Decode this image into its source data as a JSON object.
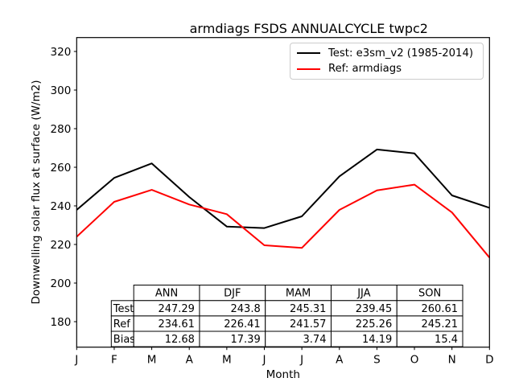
{
  "title": "armdiags FSDS ANNUALCYCLE twpc2",
  "ylabel": "Downwelling solar flux at surface (W/m2)",
  "xlabel": "Month",
  "legend": [
    {
      "label": "Test: e3sm_v2 (1985-2014)",
      "color": "#000000"
    },
    {
      "label": "Ref: armdiags",
      "color": "#ff0000"
    }
  ],
  "colors": {
    "test": "#000000",
    "ref": "#ff0000",
    "axis": "#000000",
    "legend_border": "#cccccc"
  },
  "chart_data": {
    "type": "line",
    "title": "armdiags FSDS ANNUALCYCLE twpc2",
    "xlabel": "Month",
    "ylabel": "Downwelling solar flux at surface (W/m2)",
    "x_ticklabels": [
      "J",
      "F",
      "M",
      "A",
      "M",
      "J",
      "J",
      "A",
      "S",
      "O",
      "N",
      "D"
    ],
    "y_ticks": [
      180,
      200,
      220,
      240,
      260,
      280,
      300,
      320
    ],
    "ylim": [
      166.8,
      327.2
    ],
    "grid": false,
    "legend_position": "upper right",
    "series": [
      {
        "name": "Test: e3sm_v2 (1985-2014)",
        "color": "#000000",
        "values": [
          237.9,
          254.5,
          262.0,
          244.6,
          229.3,
          228.5,
          234.6,
          255.3,
          269.2,
          267.2,
          245.4,
          239.0
        ]
      },
      {
        "name": "Ref: armdiags",
        "color": "#ff0000",
        "values": [
          224.0,
          242.1,
          248.3,
          240.7,
          235.7,
          219.6,
          218.2,
          237.9,
          248.0,
          251.0,
          236.6,
          213.2
        ]
      }
    ],
    "stats_table": {
      "columns": [
        "ANN",
        "DJF",
        "MAM",
        "JJA",
        "SON"
      ],
      "rows": [
        {
          "label": "Test",
          "values": [
            "247.29",
            "243.8",
            "245.31",
            "239.45",
            "260.61"
          ]
        },
        {
          "label": "Ref",
          "values": [
            "234.61",
            "226.41",
            "241.57",
            "225.26",
            "245.21"
          ]
        },
        {
          "label": "Bias",
          "values": [
            "12.68",
            "17.39",
            "3.74",
            "14.19",
            "15.4"
          ]
        }
      ]
    }
  }
}
